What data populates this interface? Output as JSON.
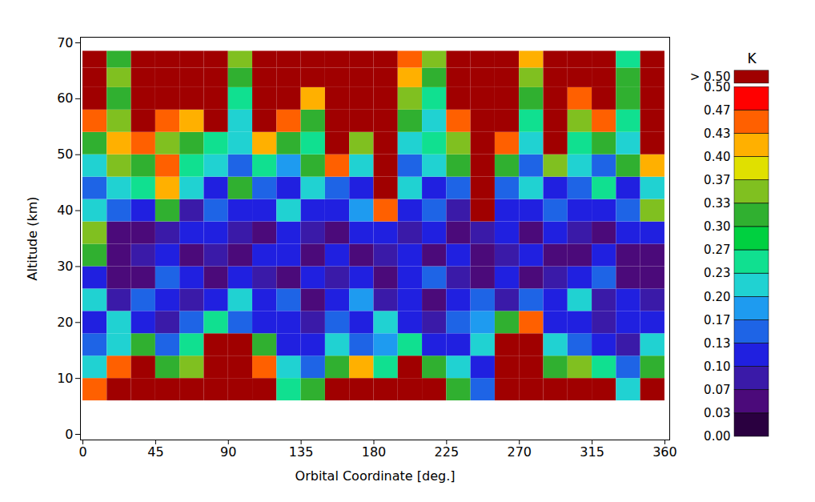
{
  "chart_data": {
    "type": "heatmap",
    "xlabel": "Orbital Coordinate [deg.]",
    "ylabel": "Altitude (km)",
    "xlim": [
      -1.5,
      363
    ],
    "ylim": [
      -1,
      71
    ],
    "xticks": [
      0,
      45,
      90,
      135,
      180,
      225,
      270,
      315,
      360
    ],
    "yticks": [
      0,
      10,
      20,
      30,
      40,
      50,
      60,
      70
    ],
    "x": [
      7.5,
      22.5,
      37.5,
      52.5,
      67.5,
      82.5,
      97.5,
      112.5,
      127.5,
      142.5,
      157.5,
      172.5,
      187.5,
      202.5,
      217.5,
      232.5,
      247.5,
      262.5,
      277.5,
      292.5,
      307.5,
      322.5,
      337.5,
      352.5
    ],
    "y": [
      8,
      12,
      16,
      20,
      24,
      28,
      32,
      36,
      40,
      44,
      48,
      52,
      56,
      60,
      64,
      67
    ],
    "values": [
      [
        0.45,
        0.6,
        0.6,
        0.55,
        0.6,
        0.7,
        0.7,
        0.6,
        0.25,
        0.3,
        0.6,
        0.55,
        0.6,
        0.6,
        0.55,
        0.3,
        0.15,
        0.6,
        0.6,
        0.55,
        0.6,
        0.6,
        0.2,
        0.55
      ],
      [
        0.2,
        0.45,
        0.55,
        0.3,
        0.35,
        0.6,
        0.7,
        0.45,
        0.2,
        0.15,
        0.3,
        0.4,
        0.25,
        0.55,
        0.3,
        0.2,
        0.12,
        0.6,
        0.6,
        0.3,
        0.35,
        0.25,
        0.15,
        0.3
      ],
      [
        0.15,
        0.2,
        0.3,
        0.15,
        0.25,
        0.6,
        0.6,
        0.3,
        0.12,
        0.1,
        0.2,
        0.15,
        0.18,
        0.25,
        0.12,
        0.1,
        0.2,
        0.6,
        0.55,
        0.2,
        0.15,
        0.1,
        0.08,
        0.2
      ],
      [
        0.1,
        0.2,
        0.12,
        0.08,
        0.15,
        0.25,
        0.15,
        0.12,
        0.1,
        0.07,
        0.15,
        0.1,
        0.2,
        0.12,
        0.08,
        0.15,
        0.18,
        0.3,
        0.45,
        0.12,
        0.1,
        0.07,
        0.1,
        0.12
      ],
      [
        0.2,
        0.08,
        0.15,
        0.1,
        0.07,
        0.12,
        0.2,
        0.1,
        0.15,
        0.05,
        0.1,
        0.18,
        0.08,
        0.12,
        0.06,
        0.1,
        0.14,
        0.08,
        0.15,
        0.1,
        0.2,
        0.08,
        0.1,
        0.07
      ],
      [
        0.1,
        0.05,
        0.04,
        0.15,
        0.1,
        0.06,
        0.12,
        0.08,
        0.05,
        0.1,
        0.07,
        0.12,
        0.05,
        0.1,
        0.15,
        0.08,
        0.06,
        0.12,
        0.05,
        0.08,
        0.1,
        0.15,
        0.05,
        0.04
      ],
      [
        0.3,
        0.06,
        0.08,
        0.1,
        0.05,
        0.08,
        0.05,
        0.12,
        0.1,
        0.06,
        0.1,
        0.05,
        0.08,
        0.12,
        0.06,
        0.1,
        0.05,
        0.08,
        0.1,
        0.06,
        0.04,
        0.1,
        0.06,
        0.03
      ],
      [
        0.35,
        0.05,
        0.03,
        0.08,
        0.1,
        0.12,
        0.08,
        0.06,
        0.12,
        0.08,
        0.05,
        0.1,
        0.12,
        0.07,
        0.1,
        0.05,
        0.08,
        0.12,
        0.06,
        0.1,
        0.08,
        0.05,
        0.1,
        0.12
      ],
      [
        0.2,
        0.15,
        0.1,
        0.3,
        0.08,
        0.15,
        0.1,
        0.12,
        0.2,
        0.12,
        0.1,
        0.18,
        0.45,
        0.1,
        0.15,
        0.08,
        0.5,
        0.12,
        0.1,
        0.15,
        0.12,
        0.1,
        0.15,
        0.35
      ],
      [
        0.15,
        0.2,
        0.25,
        0.4,
        0.2,
        0.12,
        0.3,
        0.15,
        0.1,
        0.2,
        0.15,
        0.1,
        0.5,
        0.2,
        0.12,
        0.15,
        0.6,
        0.15,
        0.2,
        0.1,
        0.15,
        0.25,
        0.12,
        0.2
      ],
      [
        0.2,
        0.35,
        0.3,
        0.45,
        0.25,
        0.2,
        0.15,
        0.25,
        0.18,
        0.3,
        0.45,
        0.2,
        0.55,
        0.15,
        0.2,
        0.3,
        0.55,
        0.3,
        0.15,
        0.35,
        0.2,
        0.15,
        0.3,
        0.4
      ],
      [
        0.3,
        0.4,
        0.45,
        0.35,
        0.3,
        0.25,
        0.2,
        0.4,
        0.3,
        0.25,
        0.55,
        0.35,
        0.6,
        0.2,
        0.25,
        0.35,
        0.6,
        0.45,
        0.2,
        0.5,
        0.25,
        0.3,
        0.2,
        0.5
      ],
      [
        0.45,
        0.35,
        0.55,
        0.45,
        0.4,
        0.55,
        0.2,
        0.5,
        0.45,
        0.3,
        0.6,
        0.5,
        0.6,
        0.3,
        0.2,
        0.45,
        0.65,
        0.5,
        0.25,
        0.6,
        0.35,
        0.45,
        0.25,
        0.55
      ],
      [
        0.6,
        0.3,
        0.6,
        0.6,
        0.55,
        0.6,
        0.25,
        0.6,
        0.55,
        0.4,
        0.65,
        0.6,
        0.65,
        0.35,
        0.25,
        0.55,
        0.65,
        0.6,
        0.3,
        0.6,
        0.45,
        0.55,
        0.3,
        0.6
      ],
      [
        0.65,
        0.35,
        0.65,
        0.65,
        0.6,
        0.65,
        0.3,
        0.65,
        0.6,
        0.5,
        0.65,
        0.65,
        0.65,
        0.4,
        0.3,
        0.6,
        0.7,
        0.6,
        0.35,
        0.65,
        0.55,
        0.6,
        0.3,
        0.65
      ],
      [
        0.7,
        0.3,
        0.7,
        0.7,
        0.65,
        0.7,
        0.35,
        0.7,
        0.65,
        0.55,
        0.7,
        0.7,
        0.7,
        0.45,
        0.35,
        0.65,
        0.7,
        0.65,
        0.4,
        0.7,
        0.6,
        0.65,
        0.25,
        0.7
      ]
    ],
    "colorbar": {
      "title": "K",
      "overflow_label": "> 0.50",
      "ticks": [
        {
          "value": 0,
          "label": "0.00"
        },
        0.03,
        0.07,
        {
          "value": 0.1,
          "label": "0.10"
        },
        0.13,
        0.17,
        {
          "value": 0.2,
          "label": "0.20"
        },
        0.23,
        0.27,
        {
          "value": 0.3,
          "label": "0.30"
        },
        0.33,
        0.37,
        {
          "value": 0.4,
          "label": "0.40"
        },
        0.43,
        0.47,
        {
          "value": 0.5,
          "label": "0.50"
        }
      ],
      "colors": [
        "#2a0040",
        "#4b0a7a",
        "#3a1aa8",
        "#2020e0",
        "#1e64e6",
        "#1e9bf0",
        "#20d2d2",
        "#10e090",
        "#00d040",
        "#30b030",
        "#80c020",
        "#e0e000",
        "#ffb000",
        "#ff6000",
        "#ff0000",
        "#a00000"
      ]
    }
  }
}
